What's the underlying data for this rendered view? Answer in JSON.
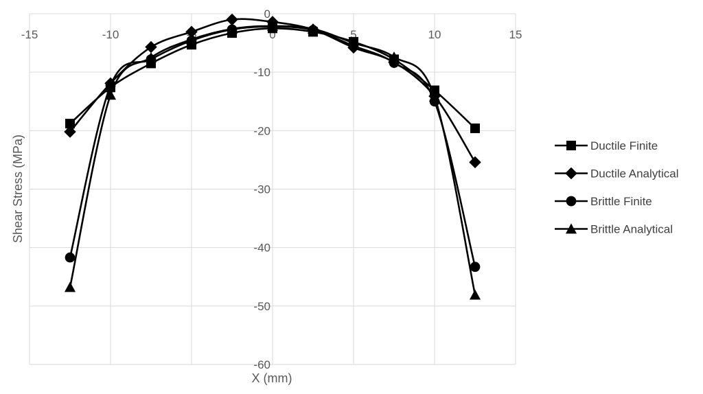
{
  "chart_data": {
    "type": "line",
    "xlabel": "X (mm)",
    "ylabel": "Shear Stress (MPa)",
    "xlim": [
      -15,
      15
    ],
    "ylim": [
      -60,
      0
    ],
    "x_ticks": [
      -15,
      -10,
      -5,
      0,
      5,
      10,
      15
    ],
    "y_ticks": [
      0,
      -10,
      -20,
      -30,
      -40,
      -50,
      -60
    ],
    "grid": true,
    "legend_position": "right",
    "line_color": "#000000",
    "grid_color": "#d9d9d9",
    "x": [
      -12.5,
      -10,
      -7.5,
      -5,
      -2.5,
      0,
      2.5,
      5,
      7.5,
      10,
      12.5
    ],
    "series": [
      {
        "name": "Ductile Finite",
        "marker": "square",
        "values": [
          -18.8,
          -12.6,
          -8.5,
          -5.3,
          -3.3,
          -2.5,
          -3.1,
          -4.8,
          -7.8,
          -13.1,
          -19.6
        ]
      },
      {
        "name": "Ductile Analytical",
        "marker": "diamond",
        "values": [
          -20.2,
          -11.9,
          -5.7,
          -3.1,
          -1.0,
          -1.4,
          -2.7,
          -5.8,
          -8.3,
          -14.1,
          -25.4
        ]
      },
      {
        "name": "Brittle Finite",
        "marker": "circle",
        "values": [
          -41.7,
          -12.3,
          -7.8,
          -4.6,
          -2.7,
          -2.2,
          -2.8,
          -5.5,
          -8.4,
          -15.0,
          -43.3
        ]
      },
      {
        "name": "Brittle Analytical",
        "marker": "triangle",
        "values": [
          -46.8,
          -13.9,
          -7.5,
          -4.4,
          -2.6,
          -2.1,
          -2.6,
          -5.0,
          -7.4,
          -14.2,
          -48.1
        ]
      }
    ]
  }
}
